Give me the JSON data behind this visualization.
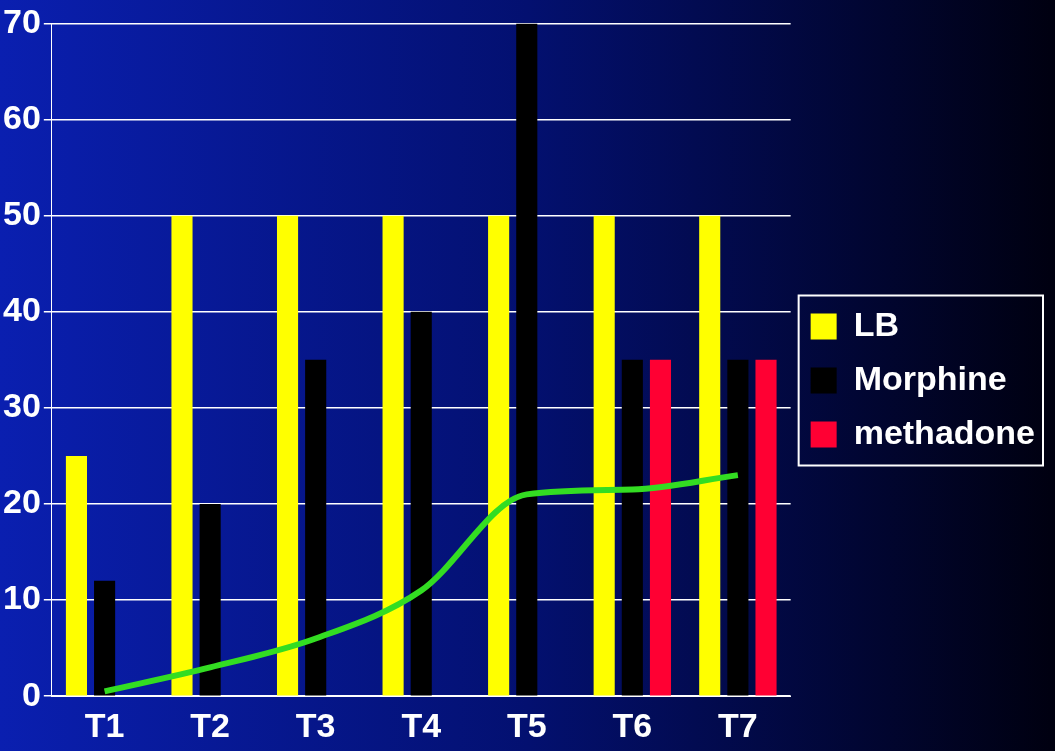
{
  "chart_data": {
    "type": "bar",
    "categories": [
      "T1",
      "T2",
      "T3",
      "T4",
      "T5",
      "T6",
      "T7"
    ],
    "series": [
      {
        "name": "LB",
        "color": "#ffff00",
        "values": [
          25,
          50,
          50,
          50,
          50,
          50,
          50
        ]
      },
      {
        "name": "Morphine",
        "color": "#000000",
        "values": [
          12,
          20,
          35,
          40,
          70,
          35,
          35
        ]
      },
      {
        "name": "methadone",
        "color": "#ff0033",
        "values": [
          null,
          0,
          0,
          0,
          0,
          35,
          35
        ]
      },
      {
        "type": "line",
        "color": "#33dd22",
        "values": [
          0.5,
          3,
          6,
          11,
          21,
          21.5,
          23
        ]
      }
    ],
    "ylim": [
      0,
      70
    ],
    "yticks": [
      0,
      10,
      20,
      30,
      40,
      50,
      60,
      70
    ],
    "grid": "y",
    "legend": "right",
    "marker": "none"
  }
}
